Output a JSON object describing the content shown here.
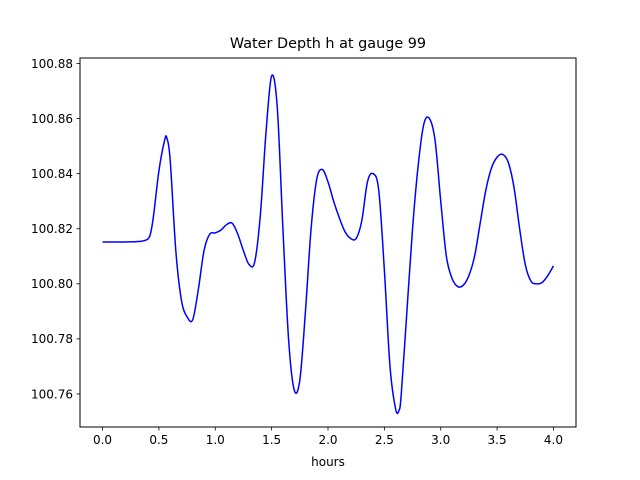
{
  "chart_data": {
    "type": "line",
    "title": "Water Depth h at gauge 99",
    "xlabel": "hours",
    "ylabel": "",
    "xlim": [
      -0.2,
      4.2
    ],
    "ylim": [
      100.748,
      100.882
    ],
    "xticks": [
      0.0,
      0.5,
      1.0,
      1.5,
      2.0,
      2.5,
      3.0,
      3.5,
      4.0
    ],
    "xtick_labels": [
      "0.0",
      "0.5",
      "1.0",
      "1.5",
      "2.0",
      "2.5",
      "3.0",
      "3.5",
      "4.0"
    ],
    "yticks": [
      100.76,
      100.78,
      100.8,
      100.82,
      100.84,
      100.86,
      100.88
    ],
    "ytick_labels": [
      "100.76",
      "100.78",
      "100.80",
      "100.82",
      "100.84",
      "100.86",
      "100.88"
    ],
    "grid": false,
    "series": [
      {
        "color": "#0000ff",
        "x": [
          0.0,
          0.1,
          0.2,
          0.3,
          0.38,
          0.42,
          0.45,
          0.5,
          0.55,
          0.57,
          0.6,
          0.65,
          0.7,
          0.75,
          0.8,
          0.85,
          0.9,
          0.95,
          1.0,
          1.05,
          1.1,
          1.15,
          1.2,
          1.25,
          1.3,
          1.35,
          1.4,
          1.45,
          1.5,
          1.55,
          1.6,
          1.65,
          1.7,
          1.75,
          1.8,
          1.85,
          1.9,
          1.95,
          2.0,
          2.05,
          2.1,
          2.15,
          2.2,
          2.25,
          2.3,
          2.35,
          2.4,
          2.45,
          2.5,
          2.55,
          2.6,
          2.63,
          2.65,
          2.7,
          2.75,
          2.8,
          2.85,
          2.9,
          2.95,
          3.0,
          3.05,
          3.1,
          3.15,
          3.2,
          3.25,
          3.3,
          3.35,
          3.4,
          3.45,
          3.5,
          3.55,
          3.6,
          3.65,
          3.7,
          3.75,
          3.8,
          3.85,
          3.9,
          3.95,
          4.0
        ],
        "y": [
          100.8152,
          100.8152,
          100.8152,
          100.8153,
          100.8158,
          100.8175,
          100.824,
          100.841,
          100.852,
          100.853,
          100.845,
          100.812,
          100.794,
          100.788,
          100.787,
          100.798,
          100.812,
          100.818,
          100.8185,
          100.8195,
          100.8215,
          100.822,
          100.818,
          100.812,
          100.807,
          100.808,
          100.825,
          100.855,
          100.8755,
          100.864,
          100.82,
          100.78,
          100.7615,
          100.765,
          100.79,
          100.82,
          100.838,
          100.8415,
          100.837,
          100.83,
          100.824,
          100.819,
          100.8165,
          100.8165,
          100.823,
          100.837,
          100.84,
          100.834,
          100.805,
          100.77,
          100.7545,
          100.754,
          100.76,
          100.79,
          100.82,
          100.843,
          100.858,
          100.86,
          100.852,
          100.83,
          100.81,
          100.802,
          100.799,
          100.7995,
          100.803,
          100.81,
          100.822,
          100.834,
          100.842,
          100.846,
          100.847,
          100.844,
          100.835,
          100.82,
          100.807,
          100.801,
          100.8,
          100.8005,
          100.803,
          100.8065
        ]
      }
    ]
  }
}
